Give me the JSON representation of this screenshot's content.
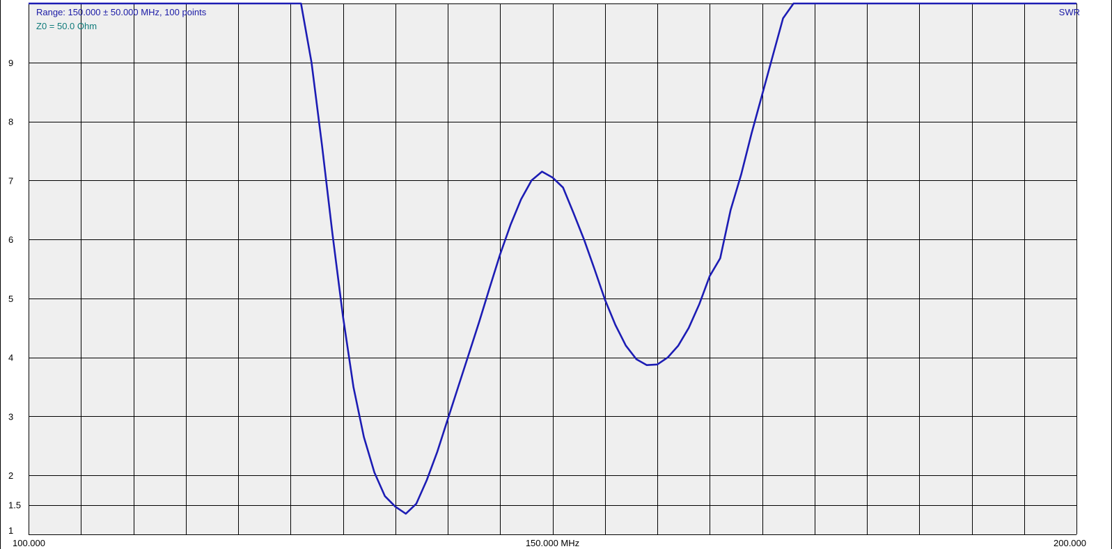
{
  "info": {
    "range_text": "Range: 150.000 ± 50.000 MHz, 100 points",
    "z0_text": "Z0 = 50.0 Ohm",
    "param_label": "SWR"
  },
  "colors": {
    "plot_bg": "#efefef",
    "grid": "#000000",
    "trace": "#1c1cb4",
    "range_text": "#1a1aa6",
    "z0_text": "#0e7a7a"
  },
  "chart_data": {
    "type": "line",
    "title": "",
    "xlabel": "",
    "ylabel": "",
    "xlim": [
      100,
      200
    ],
    "ylim": [
      1,
      10
    ],
    "grid": true,
    "y_ticks": [
      {
        "value": 1,
        "label": "1"
      },
      {
        "value": 1.5,
        "label": "1.5"
      },
      {
        "value": 2,
        "label": "2"
      },
      {
        "value": 3,
        "label": "3"
      },
      {
        "value": 4,
        "label": "4"
      },
      {
        "value": 5,
        "label": "5"
      },
      {
        "value": 6,
        "label": "6"
      },
      {
        "value": 7,
        "label": "7"
      },
      {
        "value": 8,
        "label": "8"
      },
      {
        "value": 9,
        "label": "9"
      }
    ],
    "x_tick_labels": [
      {
        "value": 100,
        "label": "100.000",
        "anchor": "start"
      },
      {
        "value": 150,
        "label": "150.000 MHz",
        "anchor": "middle"
      },
      {
        "value": 200,
        "label": "200.000",
        "anchor": "end"
      }
    ],
    "x_grid_step": 5,
    "series": [
      {
        "x": [
          100,
          120,
          126,
          127,
          128,
          129,
          130,
          131,
          132,
          133,
          134,
          135,
          136,
          137,
          138,
          139,
          140,
          141,
          142,
          143,
          144,
          145,
          146,
          147,
          148,
          149,
          150,
          151,
          152,
          153,
          154,
          155,
          156,
          157,
          158,
          159,
          160,
          161,
          162,
          163,
          164,
          165,
          166,
          167,
          168,
          169,
          170,
          171,
          172,
          173,
          174,
          175,
          176,
          177,
          178,
          179,
          180,
          181,
          182,
          183,
          184,
          185,
          186,
          200
        ],
        "values": [
          10,
          10,
          10,
          9.0,
          7.6,
          6.1,
          4.7,
          3.5,
          2.65,
          2.05,
          1.65,
          1.47,
          1.35,
          1.52,
          1.92,
          2.4,
          2.95,
          3.5,
          4.05,
          4.6,
          5.18,
          5.75,
          6.25,
          6.68,
          7.0,
          7.15,
          7.05,
          6.88,
          6.45,
          6.0,
          5.5,
          4.98,
          4.55,
          4.2,
          3.97,
          3.87,
          3.88,
          4.0,
          4.2,
          4.5,
          4.9,
          5.38,
          5.68,
          6.5,
          7.1,
          7.8,
          8.45,
          9.1,
          9.75,
          10,
          10,
          10,
          10,
          10,
          10,
          10,
          10,
          10,
          10,
          10,
          10,
          10,
          10,
          10
        ]
      }
    ]
  }
}
